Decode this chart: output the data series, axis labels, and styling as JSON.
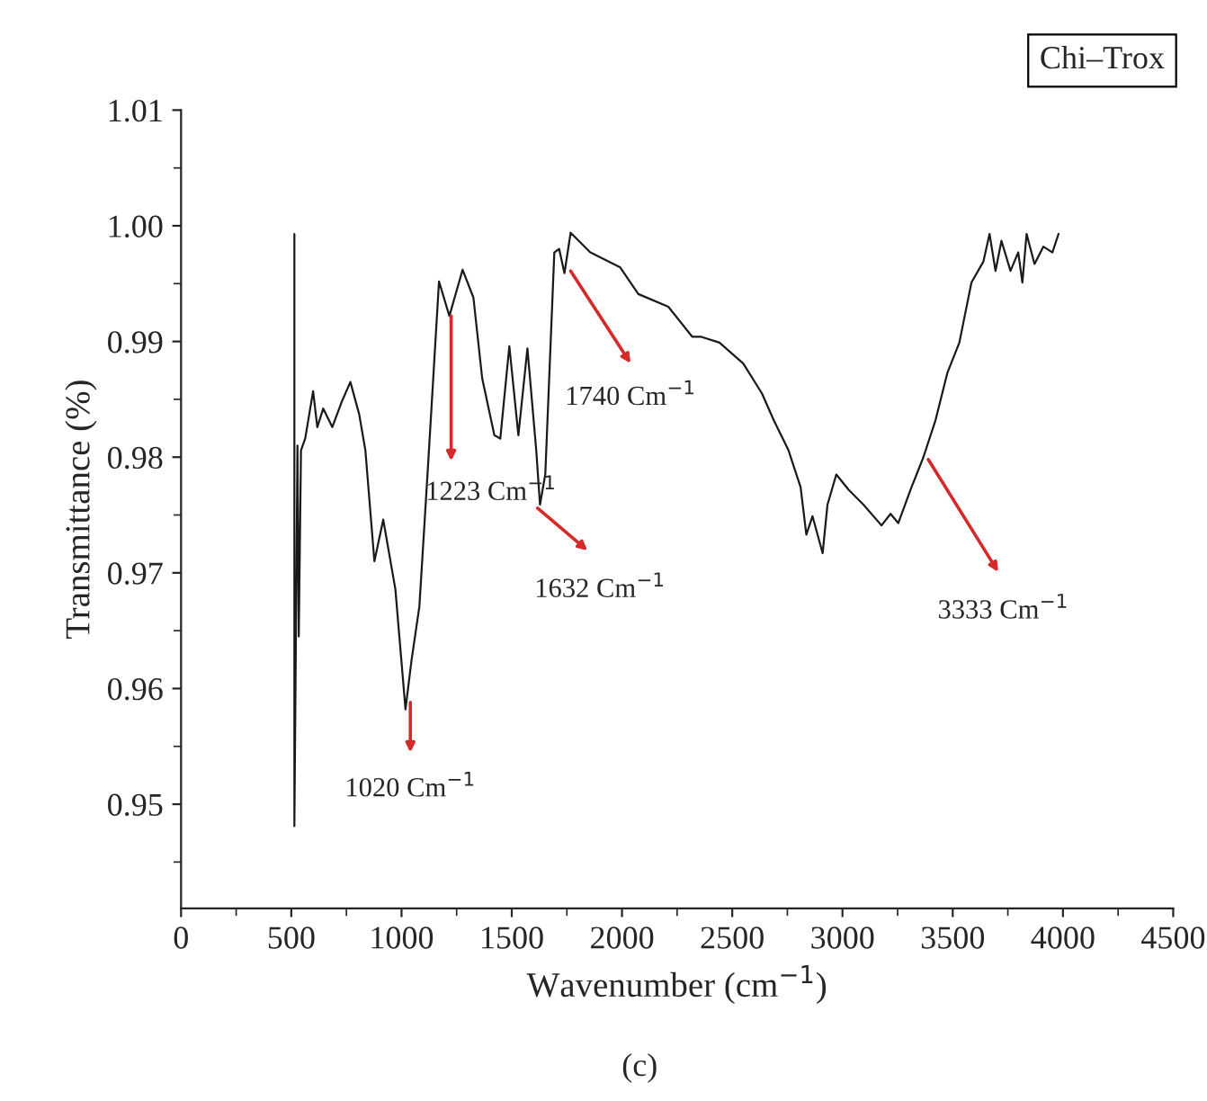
{
  "chart_data": {
    "type": "line",
    "xlabel": "Wavenumber (cm$^{−1}$)",
    "ylabel": "Transmittance (%)",
    "xlim": [
      0,
      4500
    ],
    "xticks": [
      0,
      500,
      1000,
      1500,
      2000,
      2500,
      3000,
      3500,
      4000,
      4500
    ],
    "ylim": [
      0.941,
      1.01
    ],
    "yticks": [
      0.95,
      0.96,
      0.97,
      0.98,
      0.99,
      {
        "value": 1.0,
        "label": "1.00"
      },
      1.01
    ],
    "grid": false,
    "legend": false,
    "series": [
      {
        "color": "#1a1a1a",
        "x": [
          514,
          514,
          528,
          534,
          544,
          563,
          599,
          618,
          645,
          686,
          727,
          768,
          808,
          836,
          877,
          917,
          972,
          1018,
          1045,
          1081,
          1121,
          1170,
          1217,
          1277,
          1326,
          1366,
          1421,
          1448,
          1489,
          1530,
          1571,
          1611,
          1628,
          1652,
          1693,
          1715,
          1739,
          1767,
          1856,
          1992,
          2074,
          2210,
          2319,
          2360,
          2442,
          2550,
          2635,
          2688,
          2755,
          2810,
          2836,
          2864,
          2910,
          2932,
          2972,
          3027,
          3095,
          3177,
          3218,
          3253,
          3313,
          3367,
          3422,
          3476,
          3530,
          3585,
          3639,
          3667,
          3694,
          3721,
          3762,
          3797,
          3816,
          3835,
          3871,
          3911,
          3952,
          3980
        ],
        "values": [
          0.9993,
          0.9481,
          0.981,
          0.9645,
          0.9806,
          0.9816,
          0.9857,
          0.9826,
          0.9842,
          0.9826,
          0.9847,
          0.9865,
          0.9837,
          0.9806,
          0.971,
          0.9746,
          0.9686,
          0.9582,
          0.9624,
          0.9671,
          0.9795,
          0.9952,
          0.9922,
          0.9962,
          0.9938,
          0.9868,
          0.9819,
          0.9816,
          0.9896,
          0.9819,
          0.9894,
          0.9806,
          0.9759,
          0.9785,
          0.9977,
          0.998,
          0.9959,
          0.9994,
          0.9977,
          0.9964,
          0.9941,
          0.993,
          0.9904,
          0.9904,
          0.9899,
          0.9881,
          0.9855,
          0.9832,
          0.9806,
          0.9774,
          0.9733,
          0.9749,
          0.9717,
          0.9759,
          0.9785,
          0.9772,
          0.9759,
          0.9741,
          0.9751,
          0.9743,
          0.9774,
          0.98,
          0.9832,
          0.9873,
          0.9899,
          0.9951,
          0.9969,
          0.9993,
          0.9961,
          0.9987,
          0.9961,
          0.9977,
          0.9951,
          0.9993,
          0.9967,
          0.9982,
          0.9977,
          0.9993
        ]
      }
    ],
    "annotations": [
      {
        "text": "1020 Cm$^{−1}$",
        "x": 1040,
        "y": 0.9588
      },
      {
        "text": "1223 Cm$^{−1}$",
        "x": 1225,
        "y": 0.9922
      },
      {
        "text": "1632 Cm$^{−1}$",
        "x": 1617,
        "y": 0.9756
      },
      {
        "text": "1740 Cm$^{−1}$",
        "x": 1767,
        "y": 0.9961
      },
      {
        "text": "3333 Cm$^{−1}$",
        "x": 3389,
        "y": 0.9798
      },
      "Chi–Trox",
      "(c)"
    ]
  }
}
